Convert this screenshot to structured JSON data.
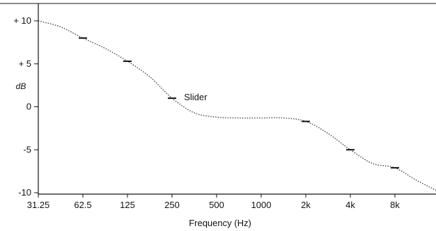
{
  "chart_data": {
    "type": "line",
    "title": "",
    "xlabel": "Frequency (Hz)",
    "ylabel": "dB",
    "x_tick_labels": [
      "31.25",
      "62.5",
      "125",
      "250",
      "500",
      "1000",
      "2k",
      "4k",
      "8k"
    ],
    "y_ticks": [
      {
        "value": 10,
        "label": "+ 10"
      },
      {
        "value": 5,
        "label": "+ 5"
      },
      {
        "value": 0,
        "label": "0"
      },
      {
        "value": -5,
        "label": "-5"
      },
      {
        "value": -10,
        "label": "-10"
      }
    ],
    "ylim": [
      -10,
      11.5
    ],
    "grid": false,
    "series": [
      {
        "style": "dotted",
        "color": "#444444",
        "x": [
          0,
          0.5,
          1,
          1.5,
          2,
          2.5,
          3,
          3.5,
          4,
          4.5,
          5,
          5.5,
          6,
          6.5,
          7,
          7.5,
          8,
          8.5,
          9
        ],
        "y": [
          10,
          9.3,
          8,
          6.8,
          5.3,
          3.5,
          1,
          -0.7,
          -1.2,
          -1.3,
          -1.3,
          -1.3,
          -1.7,
          -3.1,
          -5,
          -6.6,
          -7.1,
          -8.6,
          -9.9
        ]
      }
    ],
    "slider_markers": [
      {
        "x": 1,
        "y": 8
      },
      {
        "x": 2,
        "y": 5.3
      },
      {
        "x": 3,
        "y": 1
      },
      {
        "x": 6,
        "y": -1.7
      },
      {
        "x": 7,
        "y": -5
      },
      {
        "x": 8,
        "y": -7.1
      }
    ],
    "annotations": [
      {
        "text": "Slider",
        "x": 3.05,
        "y": 1.1
      }
    ]
  }
}
